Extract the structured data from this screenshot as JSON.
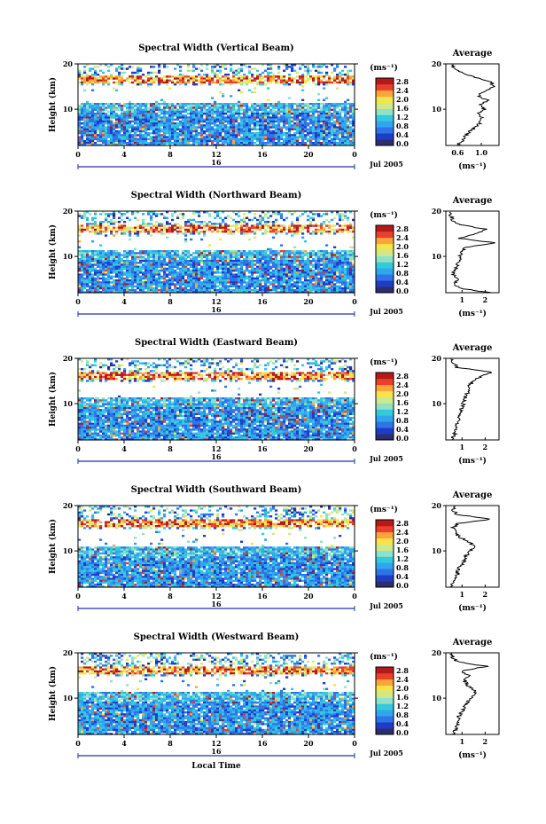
{
  "colorbar": {
    "unit_label": "(ms⁻¹)",
    "tick_labels": [
      "2.8",
      "2.4",
      "2.0",
      "1.6",
      "1.2",
      "0.8",
      "0.4",
      "0.0"
    ],
    "colors": [
      "#2b2d6e",
      "#1f3cc8",
      "#2f74e6",
      "#2fa6ee",
      "#35c9dd",
      "#8fe2c4",
      "#cfe98a",
      "#f7e34a",
      "#f9a53a",
      "#e8402a",
      "#b51a1a"
    ]
  },
  "x_axis": {
    "tick_labels": [
      "0",
      "4",
      "8",
      "12",
      "16",
      "20",
      "0"
    ],
    "day_label": "16",
    "date_label": "Jul 2005",
    "xlabel": "Local Time"
  },
  "chart_data": [
    {
      "type": "heatmap",
      "title": "Spectral Width (Vertical Beam)",
      "ylabel": "Height (km)",
      "x_range_hours": [
        0,
        24
      ],
      "y_range_km": [
        2,
        20
      ],
      "y_tick_labels": [
        "10",
        "20"
      ],
      "clim": [
        0.0,
        2.8
      ],
      "gap_km": [
        11.5,
        15.5
      ],
      "average_profile": {
        "title": "Average",
        "xlabel": "(ms⁻¹)",
        "x_tick_labels": [
          "0.6",
          "1.0"
        ],
        "x_ticks": [
          0.6,
          1.0
        ],
        "xlim": [
          0.4,
          1.3
        ],
        "height_km": [
          2,
          3,
          4,
          5,
          6,
          7,
          8,
          9,
          10,
          11,
          12,
          13,
          14,
          15,
          16,
          17,
          18,
          19,
          20
        ],
        "width_ms": [
          0.6,
          0.68,
          0.72,
          0.8,
          0.9,
          0.98,
          1.0,
          0.95,
          1.05,
          1.0,
          1.1,
          0.95,
          1.05,
          1.2,
          1.18,
          0.9,
          0.7,
          0.55,
          0.5
        ]
      }
    },
    {
      "type": "heatmap",
      "title": "Spectral Width (Northward Beam)",
      "ylabel": "Height (km)",
      "x_range_hours": [
        0,
        24
      ],
      "y_range_km": [
        2,
        20
      ],
      "y_tick_labels": [
        "10",
        "20"
      ],
      "clim": [
        0.0,
        2.8
      ],
      "gap_km": [
        11.5,
        15.0
      ],
      "average_profile": {
        "title": "Average",
        "xlabel": "(ms⁻¹)",
        "x_tick_labels": [
          "1",
          "2"
        ],
        "x_ticks": [
          1,
          2
        ],
        "xlim": [
          0.3,
          2.6
        ],
        "height_km": [
          2,
          3,
          4,
          5,
          6,
          7,
          8,
          9,
          10,
          11,
          12,
          13,
          14,
          15,
          16,
          17,
          18,
          19,
          20
        ],
        "width_ms": [
          2.2,
          0.9,
          0.7,
          0.8,
          0.6,
          0.7,
          0.8,
          0.9,
          0.9,
          1.0,
          1.1,
          2.4,
          0.9,
          1.6,
          2.0,
          0.9,
          0.6,
          0.5,
          0.5
        ]
      }
    },
    {
      "type": "heatmap",
      "title": "Spectral Width (Eastward Beam)",
      "ylabel": "Height (km)",
      "x_range_hours": [
        0,
        24
      ],
      "y_range_km": [
        2,
        20
      ],
      "y_tick_labels": [
        "10",
        "20"
      ],
      "clim": [
        0.0,
        2.8
      ],
      "gap_km": [
        11.5,
        15.0
      ],
      "average_profile": {
        "title": "Average",
        "xlabel": "(ms⁻¹)",
        "x_tick_labels": [
          "1",
          "2"
        ],
        "x_ticks": [
          1,
          2
        ],
        "xlim": [
          0.3,
          2.6
        ],
        "height_km": [
          2,
          3,
          4,
          5,
          6,
          7,
          8,
          9,
          10,
          11,
          12,
          13,
          14,
          15,
          16,
          17,
          18,
          19,
          20
        ],
        "width_ms": [
          0.6,
          0.65,
          0.7,
          0.75,
          0.8,
          0.9,
          0.95,
          1.0,
          1.05,
          1.1,
          1.2,
          1.25,
          1.3,
          1.5,
          1.8,
          2.3,
          0.8,
          0.6,
          0.55
        ]
      }
    },
    {
      "type": "heatmap",
      "title": "Spectral Width (Southward Beam)",
      "ylabel": "Height (km)",
      "x_range_hours": [
        0,
        24
      ],
      "y_range_km": [
        2,
        20
      ],
      "y_tick_labels": [
        "10",
        "20"
      ],
      "clim": [
        0.0,
        2.8
      ],
      "gap_km": [
        11.0,
        15.0
      ],
      "average_profile": {
        "title": "Average",
        "xlabel": "(ms⁻¹)",
        "x_tick_labels": [
          "1",
          "2"
        ],
        "x_ticks": [
          1,
          2
        ],
        "xlim": [
          0.3,
          2.6
        ],
        "height_km": [
          2,
          3,
          4,
          5,
          6,
          7,
          8,
          9,
          10,
          11,
          12,
          13,
          14,
          15,
          16,
          17,
          18,
          19,
          20
        ],
        "width_ms": [
          0.5,
          0.6,
          0.7,
          0.8,
          0.85,
          1.0,
          1.1,
          1.2,
          1.4,
          1.5,
          1.3,
          0.9,
          0.7,
          0.6,
          0.8,
          2.2,
          0.8,
          0.6,
          0.7
        ]
      }
    },
    {
      "type": "heatmap",
      "title": "Spectral Width (Westward Beam)",
      "ylabel": "Height (km)",
      "x_range_hours": [
        0,
        24
      ],
      "y_range_km": [
        2,
        20
      ],
      "y_tick_labels": [
        "10",
        "20"
      ],
      "clim": [
        0.0,
        2.8
      ],
      "gap_km": [
        11.5,
        15.0
      ],
      "average_profile": {
        "title": "Average",
        "xlabel": "(ms⁻¹)",
        "x_tick_labels": [
          "1",
          "2"
        ],
        "x_ticks": [
          1,
          2
        ],
        "xlim": [
          0.3,
          2.6
        ],
        "height_km": [
          2,
          3,
          4,
          5,
          6,
          7,
          8,
          9,
          10,
          11,
          12,
          13,
          14,
          15,
          16,
          17,
          18,
          19,
          20
        ],
        "width_ms": [
          0.6,
          0.7,
          0.8,
          0.9,
          0.85,
          1.0,
          1.1,
          1.2,
          1.4,
          1.6,
          1.5,
          1.2,
          1.1,
          1.3,
          1.0,
          2.1,
          0.8,
          0.6,
          0.5
        ]
      }
    }
  ]
}
